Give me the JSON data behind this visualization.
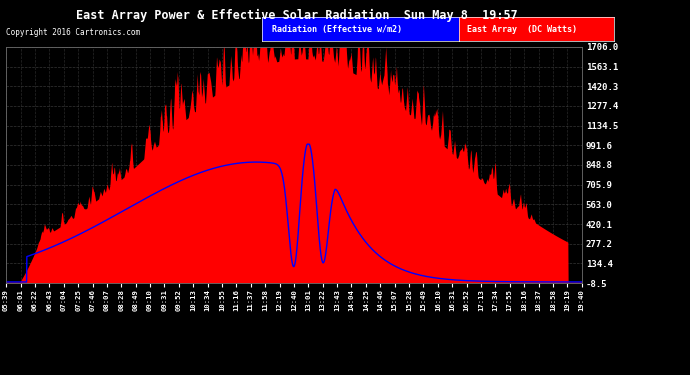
{
  "title": "East Array Power & Effective Solar Radiation  Sun May 8  19:57",
  "copyright": "Copyright 2016 Cartronics.com",
  "legend_radiation": "Radiation (Effective w/m2)",
  "legend_east": "East Array  (DC Watts)",
  "ymin": -8.5,
  "ymax": 1706.0,
  "yticks": [
    -8.5,
    134.4,
    277.2,
    420.1,
    563.0,
    705.9,
    848.8,
    991.6,
    1134.5,
    1277.4,
    1420.3,
    1563.1,
    1706.0
  ],
  "bg_color": "#000000",
  "plot_bg": "#111111",
  "grid_color": "#444444",
  "red_color": "#ff0000",
  "blue_color": "#0000ff",
  "title_color": "#ffffff",
  "text_color": "#ffffff",
  "tick_color": "#ffffff",
  "xtick_labels": [
    "05:39",
    "06:01",
    "06:22",
    "06:43",
    "07:04",
    "07:25",
    "07:46",
    "08:07",
    "08:28",
    "08:49",
    "09:10",
    "09:31",
    "09:52",
    "10:13",
    "10:34",
    "10:55",
    "11:16",
    "11:37",
    "11:58",
    "12:19",
    "12:40",
    "13:01",
    "13:22",
    "13:43",
    "14:04",
    "14:25",
    "14:46",
    "15:07",
    "15:28",
    "15:49",
    "16:10",
    "16:31",
    "16:52",
    "17:13",
    "17:34",
    "17:55",
    "18:16",
    "18:37",
    "18:58",
    "19:19",
    "19:40"
  ]
}
